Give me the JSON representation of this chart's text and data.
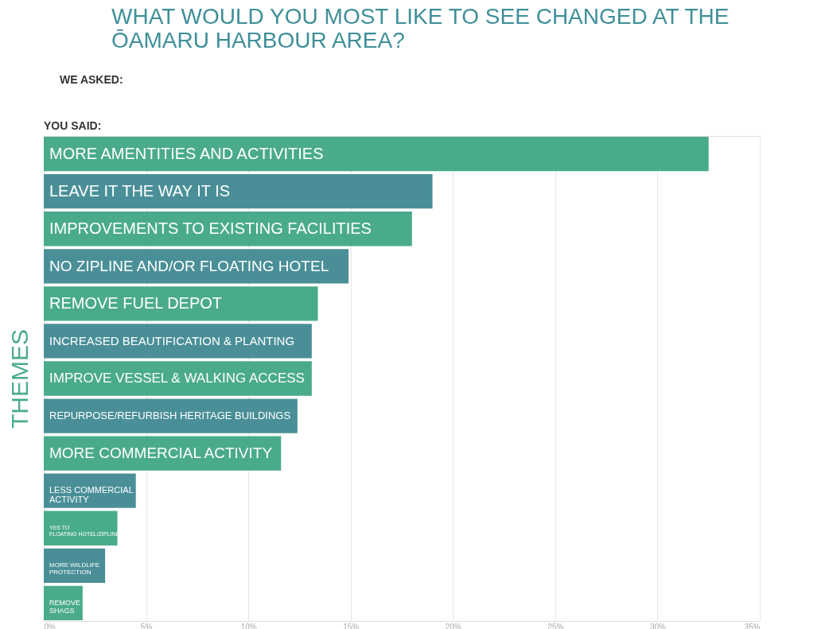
{
  "chart_data": {
    "type": "bar",
    "orientation": "horizontal",
    "title": "WHAT WOULD YOU MOST LIKE TO SEE CHANGED AT THE ŌAMARU HARBOUR AREA?",
    "ylabel": "THEMES",
    "annotations": [
      "WE ASKED:",
      "YOU SAID:"
    ],
    "categories": [
      "MORE AMENTITIES AND ACTIVITIES",
      "LEAVE IT THE WAY IT IS",
      "IMPROVEMENTS TO EXISTING FACILITIES",
      "NO ZIPLINE AND/OR FLOATING HOTEL",
      "REMOVE FUEL DEPOT",
      "INCREASED BEAUTIFICATION & PLANTING",
      "IMPROVE VESSEL & WALKING ACCESS",
      "REPURPOSE/REFURBISH HERITAGE BUILDINGS",
      "MORE COMMERCIAL ACTIVITY",
      "LESS COMMERCIAL ACTIVITY",
      "YES TO FLOATING HOTEL/ZIPLINE",
      "MORE WILDLIFE PROTECTION",
      "REMOVE SHAGS"
    ],
    "values": [
      32.5,
      19.0,
      18.0,
      14.9,
      13.4,
      13.1,
      13.1,
      12.4,
      11.6,
      4.5,
      3.6,
      3.0,
      1.9
    ],
    "colors": [
      "#4aab8c",
      "#4a8f98",
      "#4aab8c",
      "#4a8f98",
      "#4aab8c",
      "#4a8f98",
      "#4aab8c",
      "#4a8f98",
      "#4aab8c",
      "#4a8f98",
      "#4aab8c",
      "#4a8f98",
      "#4aab8c"
    ],
    "xlim": [
      0,
      35
    ],
    "xticks": [
      {
        "value": 0,
        "label": "0%"
      },
      {
        "value": 5,
        "label": "5%"
      },
      {
        "value": 10,
        "label": "10%"
      },
      {
        "value": 15,
        "label": "15%"
      },
      {
        "value": 20,
        "label": "20%"
      },
      {
        "value": 25,
        "label": "25%"
      },
      {
        "value": 30,
        "label": "30%"
      },
      {
        "value": 35,
        "label": "35%"
      }
    ],
    "grid": "x"
  }
}
